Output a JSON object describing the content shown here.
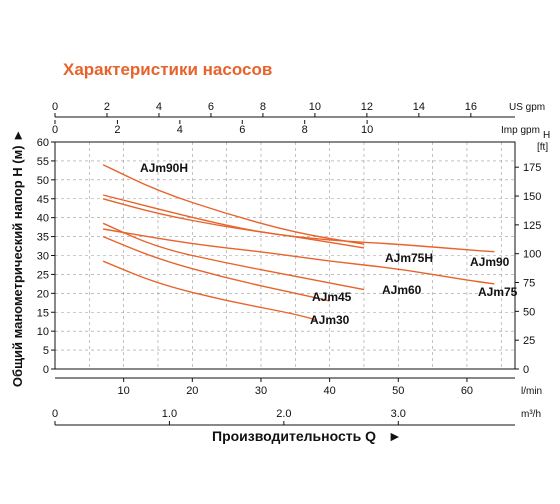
{
  "title": "Характеристики насосов",
  "xlabel": "Производительность Q",
  "xlabel_arrow": "►",
  "ylabel": "Общий манометрический напор H (м)",
  "ylabel_arrow": "►",
  "colors": {
    "curve": "#e8632b",
    "grid": "#9a9a9a",
    "axis": "#111111",
    "title": "#e8632b"
  },
  "chart_data": {
    "type": "line",
    "x_unit": "l/min",
    "xlim": [
      0,
      67
    ],
    "ylim": [
      0,
      60
    ],
    "ylabel_unit": "м",
    "grid": true,
    "axes": {
      "left": {
        "ticks": [
          0,
          5,
          10,
          15,
          20,
          25,
          30,
          35,
          40,
          45,
          50,
          55,
          60
        ]
      },
      "bottom_lmin": {
        "ticks": [
          10,
          20,
          30,
          40,
          50,
          60
        ],
        "unit": "l/min"
      },
      "bottom_m3h": {
        "ticks": [
          "0",
          "1.0",
          "2.0",
          "3.0"
        ],
        "values": [
          0,
          1,
          2,
          3
        ],
        "unit": "m³/h"
      },
      "top_usgpm": {
        "ticks": [
          0,
          2,
          4,
          6,
          8,
          10,
          12,
          14,
          16
        ],
        "unit": "US gpm"
      },
      "top_impgpm": {
        "ticks": [
          0,
          2,
          4,
          6,
          8,
          10
        ],
        "unit": "Imp gpm"
      },
      "right_ft": {
        "title": "H",
        "unit": "[ft]",
        "ticks": [
          0,
          25,
          50,
          75,
          100,
          125,
          150,
          175
        ]
      }
    },
    "series": [
      {
        "name": "AJm90H",
        "x": [
          7,
          15,
          25,
          35,
          45
        ],
        "y": [
          54,
          47,
          41,
          36,
          33
        ]
      },
      {
        "name": "AJm90",
        "x": [
          7,
          20,
          30,
          40,
          50,
          60,
          64
        ],
        "y": [
          46,
          40,
          36,
          34,
          33,
          31.5,
          31
        ]
      },
      {
        "name": "AJm75H",
        "x": [
          7,
          15,
          25,
          35,
          45
        ],
        "y": [
          45,
          41,
          37.5,
          35,
          32
        ]
      },
      {
        "name": "AJm75",
        "x": [
          7,
          20,
          30,
          40,
          50,
          60,
          64
        ],
        "y": [
          37,
          33,
          31,
          28.5,
          26.5,
          23.5,
          22.5
        ]
      },
      {
        "name": "AJm60",
        "x": [
          7,
          15,
          25,
          35,
          45
        ],
        "y": [
          38.5,
          32,
          28,
          24.5,
          21
        ]
      },
      {
        "name": "AJm45",
        "x": [
          7,
          15,
          25,
          35,
          40
        ],
        "y": [
          35,
          29,
          24,
          20,
          18
        ]
      },
      {
        "name": "AJm30",
        "x": [
          7,
          15,
          25,
          35,
          38
        ],
        "y": [
          28.5,
          22.5,
          18,
          14.5,
          13
        ]
      }
    ]
  }
}
